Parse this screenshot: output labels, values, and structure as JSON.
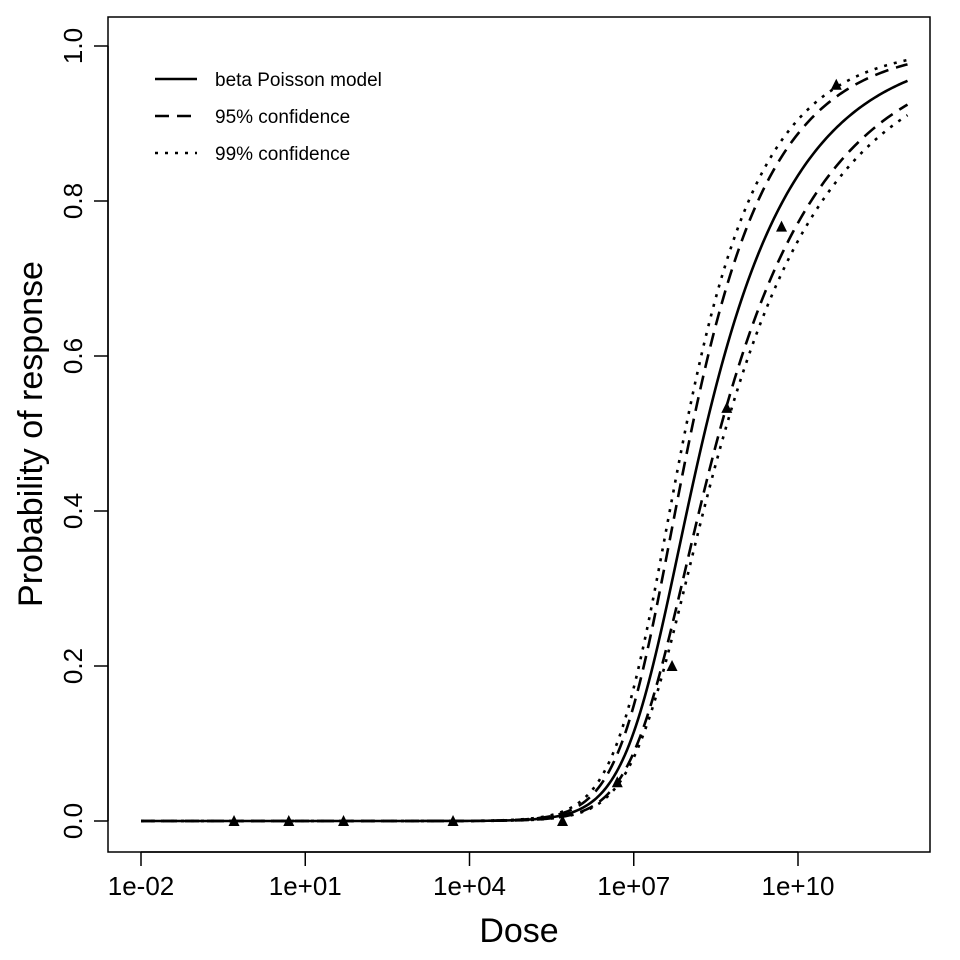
{
  "chart_data": {
    "type": "line",
    "xlabel": "Dose",
    "ylabel": "Probability of response",
    "x_scale": "log10",
    "xlim": [
      0.01,
      1000000000000.0
    ],
    "ylim": [
      0.0,
      1.0
    ],
    "grid": false,
    "legend_position": "top-left",
    "x_ticks": [
      0.01,
      10,
      10000,
      10000000,
      10000000000
    ],
    "x_tick_labels": [
      "1e-02",
      "1e+01",
      "1e+04",
      "1e+07",
      "1e+10"
    ],
    "y_ticks": [
      0.0,
      0.2,
      0.4,
      0.6,
      0.8,
      1.0
    ],
    "y_tick_labels": [
      "0.0",
      "0.2",
      "0.4",
      "0.6",
      "0.8",
      "1.0"
    ],
    "series": [
      {
        "name": "beta Poisson model",
        "line_style": "solid",
        "alpha": 0.285,
        "N50": 195000000
      },
      {
        "name": "95% confidence",
        "line_style": "dashed",
        "bounds": [
          {
            "alpha": 0.34,
            "N50": 110000000
          },
          {
            "alpha": 0.24,
            "N50": 360000000
          }
        ]
      },
      {
        "name": "99% confidence",
        "line_style": "dotted",
        "bounds": [
          {
            "alpha": 0.36,
            "N50": 85000000
          },
          {
            "alpha": 0.225,
            "N50": 450000000
          }
        ]
      }
    ],
    "observed": {
      "marker": "filled-triangle",
      "points": [
        {
          "x": 0.5,
          "y": 0.0
        },
        {
          "x": 5,
          "y": 0.0
        },
        {
          "x": 50,
          "y": 0.0
        },
        {
          "x": 5000,
          "y": 0.0
        },
        {
          "x": 500000,
          "y": 0.0
        },
        {
          "x": 5000000,
          "y": 0.05
        },
        {
          "x": 50000000,
          "y": 0.2
        },
        {
          "x": 500000000,
          "y": 0.533
        },
        {
          "x": 5000000000,
          "y": 0.767
        },
        {
          "x": 50000000000,
          "y": 0.95
        }
      ]
    }
  }
}
